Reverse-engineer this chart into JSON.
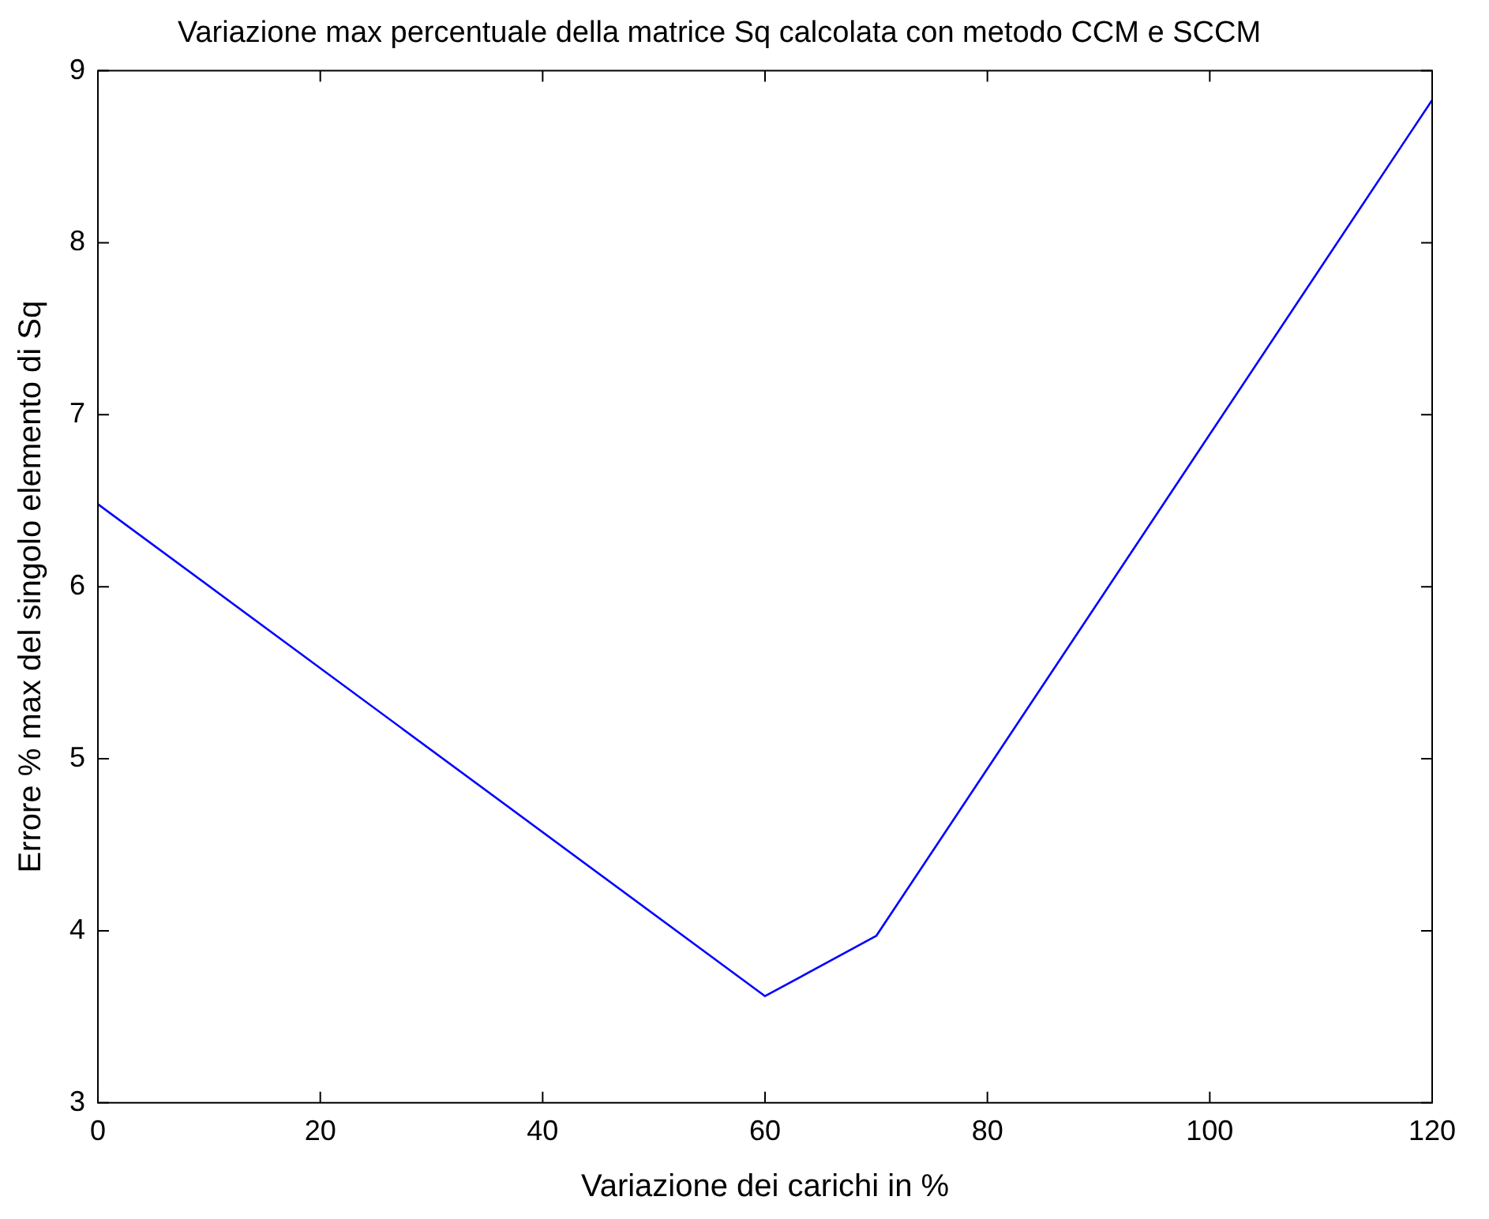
{
  "chart_data": {
    "type": "line",
    "title": "Variazione max percentuale della matrice Sq calcolata con metodo CCM e SCCM",
    "xlabel": "Variazione dei carichi in %",
    "ylabel": "Errore % max del singolo elemento di Sq",
    "x": [
      0,
      60,
      70,
      120
    ],
    "series": [
      {
        "color": "#0000ff",
        "values": [
          6.48,
          3.62,
          3.97,
          8.83
        ]
      }
    ],
    "xlim": [
      0,
      120
    ],
    "xticks": [
      0,
      20,
      40,
      60,
      80,
      100,
      120
    ],
    "ylim": [
      3,
      9
    ],
    "yticks": [
      3,
      4,
      5,
      6,
      7,
      8,
      9
    ],
    "grid": false,
    "legend": false,
    "marker": "none",
    "line_style": "solid"
  }
}
